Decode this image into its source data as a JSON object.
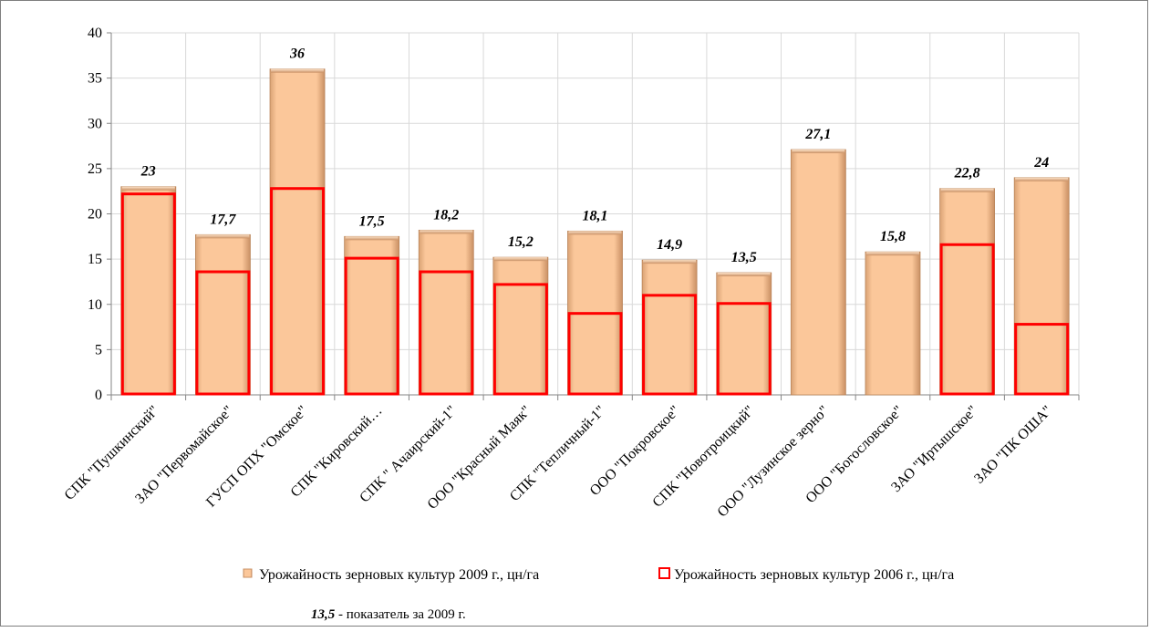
{
  "chart_data": {
    "type": "bar",
    "categories": [
      "СПК \"Пушкинский\"",
      "ЗАО \"Первомайское\"",
      "ГУСП ОПХ \"Омское\"",
      "СПК \"Кировский…",
      "СПК \" Ачаирский-1\"",
      "ООО \"Красный Маяк\"",
      "СПК \"Тепличный-1\"",
      "ООО \"Покровское\"",
      "СПК \"Новотроицкий\"",
      "ООО \"Лузинское зерно\"",
      "ООО \"Богословское\"",
      "ЗАО \"Иртышское\"",
      "ЗАО \"ПК ОША\""
    ],
    "series": [
      {
        "name": "Урожайность зерновых культур 2009 г., цн/га",
        "values": [
          23,
          17.7,
          36,
          17.5,
          18.2,
          15.2,
          18.1,
          14.9,
          13.5,
          27.1,
          15.8,
          22.8,
          24
        ],
        "labels": [
          "23",
          "17,7",
          "36",
          "17,5",
          "18,2",
          "15,2",
          "18,1",
          "14,9",
          "13,5",
          "27,1",
          "15,8",
          "22,8",
          "24"
        ],
        "color": "#fbc79a"
      },
      {
        "name": "Урожайность зерновых культур 2006 г., цн/га",
        "values": [
          22.2,
          13.6,
          22.8,
          15.1,
          13.6,
          12.2,
          9.0,
          11.0,
          10.1,
          null,
          null,
          16.6,
          7.8
        ],
        "color": "#ff0000"
      }
    ],
    "yticks": [
      "0",
      "5",
      "10",
      "15",
      "20",
      "25",
      "30",
      "35",
      "40"
    ],
    "ylim": [
      0,
      40
    ],
    "grid": true,
    "legend_position": "bottom",
    "note": {
      "value": "13,5",
      "text": " - показатель за 2009 г."
    }
  }
}
